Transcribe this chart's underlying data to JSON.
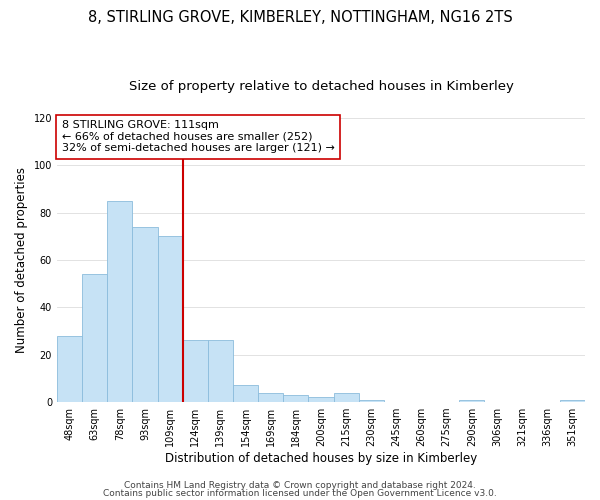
{
  "title": "8, STIRLING GROVE, KIMBERLEY, NOTTINGHAM, NG16 2TS",
  "subtitle": "Size of property relative to detached houses in Kimberley",
  "xlabel": "Distribution of detached houses by size in Kimberley",
  "ylabel": "Number of detached properties",
  "bar_values": [
    28,
    54,
    85,
    74,
    70,
    26,
    26,
    7,
    4,
    3,
    2,
    4,
    1,
    0,
    0,
    0,
    1,
    0,
    0,
    0,
    1
  ],
  "bin_labels": [
    "48sqm",
    "63sqm",
    "78sqm",
    "93sqm",
    "109sqm",
    "124sqm",
    "139sqm",
    "154sqm",
    "169sqm",
    "184sqm",
    "200sqm",
    "215sqm",
    "230sqm",
    "245sqm",
    "260sqm",
    "275sqm",
    "290sqm",
    "306sqm",
    "321sqm",
    "336sqm",
    "351sqm"
  ],
  "bar_color": "#c6e2f5",
  "bar_edge_color": "#8bbcdc",
  "vline_x_index": 4,
  "vline_color": "#cc0000",
  "annotation_text": "8 STIRLING GROVE: 111sqm\n← 66% of detached houses are smaller (252)\n32% of semi-detached houses are larger (121) →",
  "annotation_box_color": "#ffffff",
  "annotation_box_edge_color": "#cc0000",
  "ylim": [
    0,
    120
  ],
  "yticks": [
    0,
    20,
    40,
    60,
    80,
    100,
    120
  ],
  "footer_line1": "Contains HM Land Registry data © Crown copyright and database right 2024.",
  "footer_line2": "Contains public sector information licensed under the Open Government Licence v3.0.",
  "background_color": "#ffffff",
  "grid_color": "#dddddd",
  "title_fontsize": 10.5,
  "subtitle_fontsize": 9.5,
  "axis_label_fontsize": 8.5,
  "tick_fontsize": 7,
  "annotation_fontsize": 8,
  "footer_fontsize": 6.5
}
